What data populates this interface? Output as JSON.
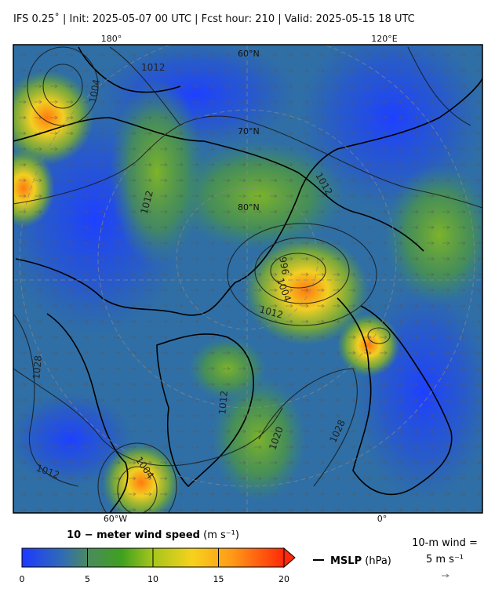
{
  "header": {
    "title": "IFS 0.25˚  |  Init: 2025-05-07 00 UTC  |  Fcst hour: 210  |  Valid: 2025-05-15 18 UTC"
  },
  "map": {
    "lon_labels": [
      "180°",
      "120°E",
      "60°W",
      "0°"
    ],
    "lat_labels": [
      "60°N",
      "70°N",
      "80°N"
    ],
    "contour_labels": [
      "1012",
      "1004",
      "1012",
      "996",
      "1004",
      "1012",
      "1028",
      "1012",
      "1020",
      "1028",
      "1012",
      "1004",
      "1012"
    ]
  },
  "colorbar": {
    "title": "10 − meter wind speed",
    "unit": "(m s⁻¹)",
    "lim": [
      0,
      20
    ],
    "ticks": [
      0,
      5,
      10,
      15,
      20
    ]
  },
  "legend": {
    "mslp": "MSLP",
    "mslp_unit": "(hPa)",
    "wind_key": "10-m wind =",
    "wind_value": "5 m s⁻¹"
  }
}
